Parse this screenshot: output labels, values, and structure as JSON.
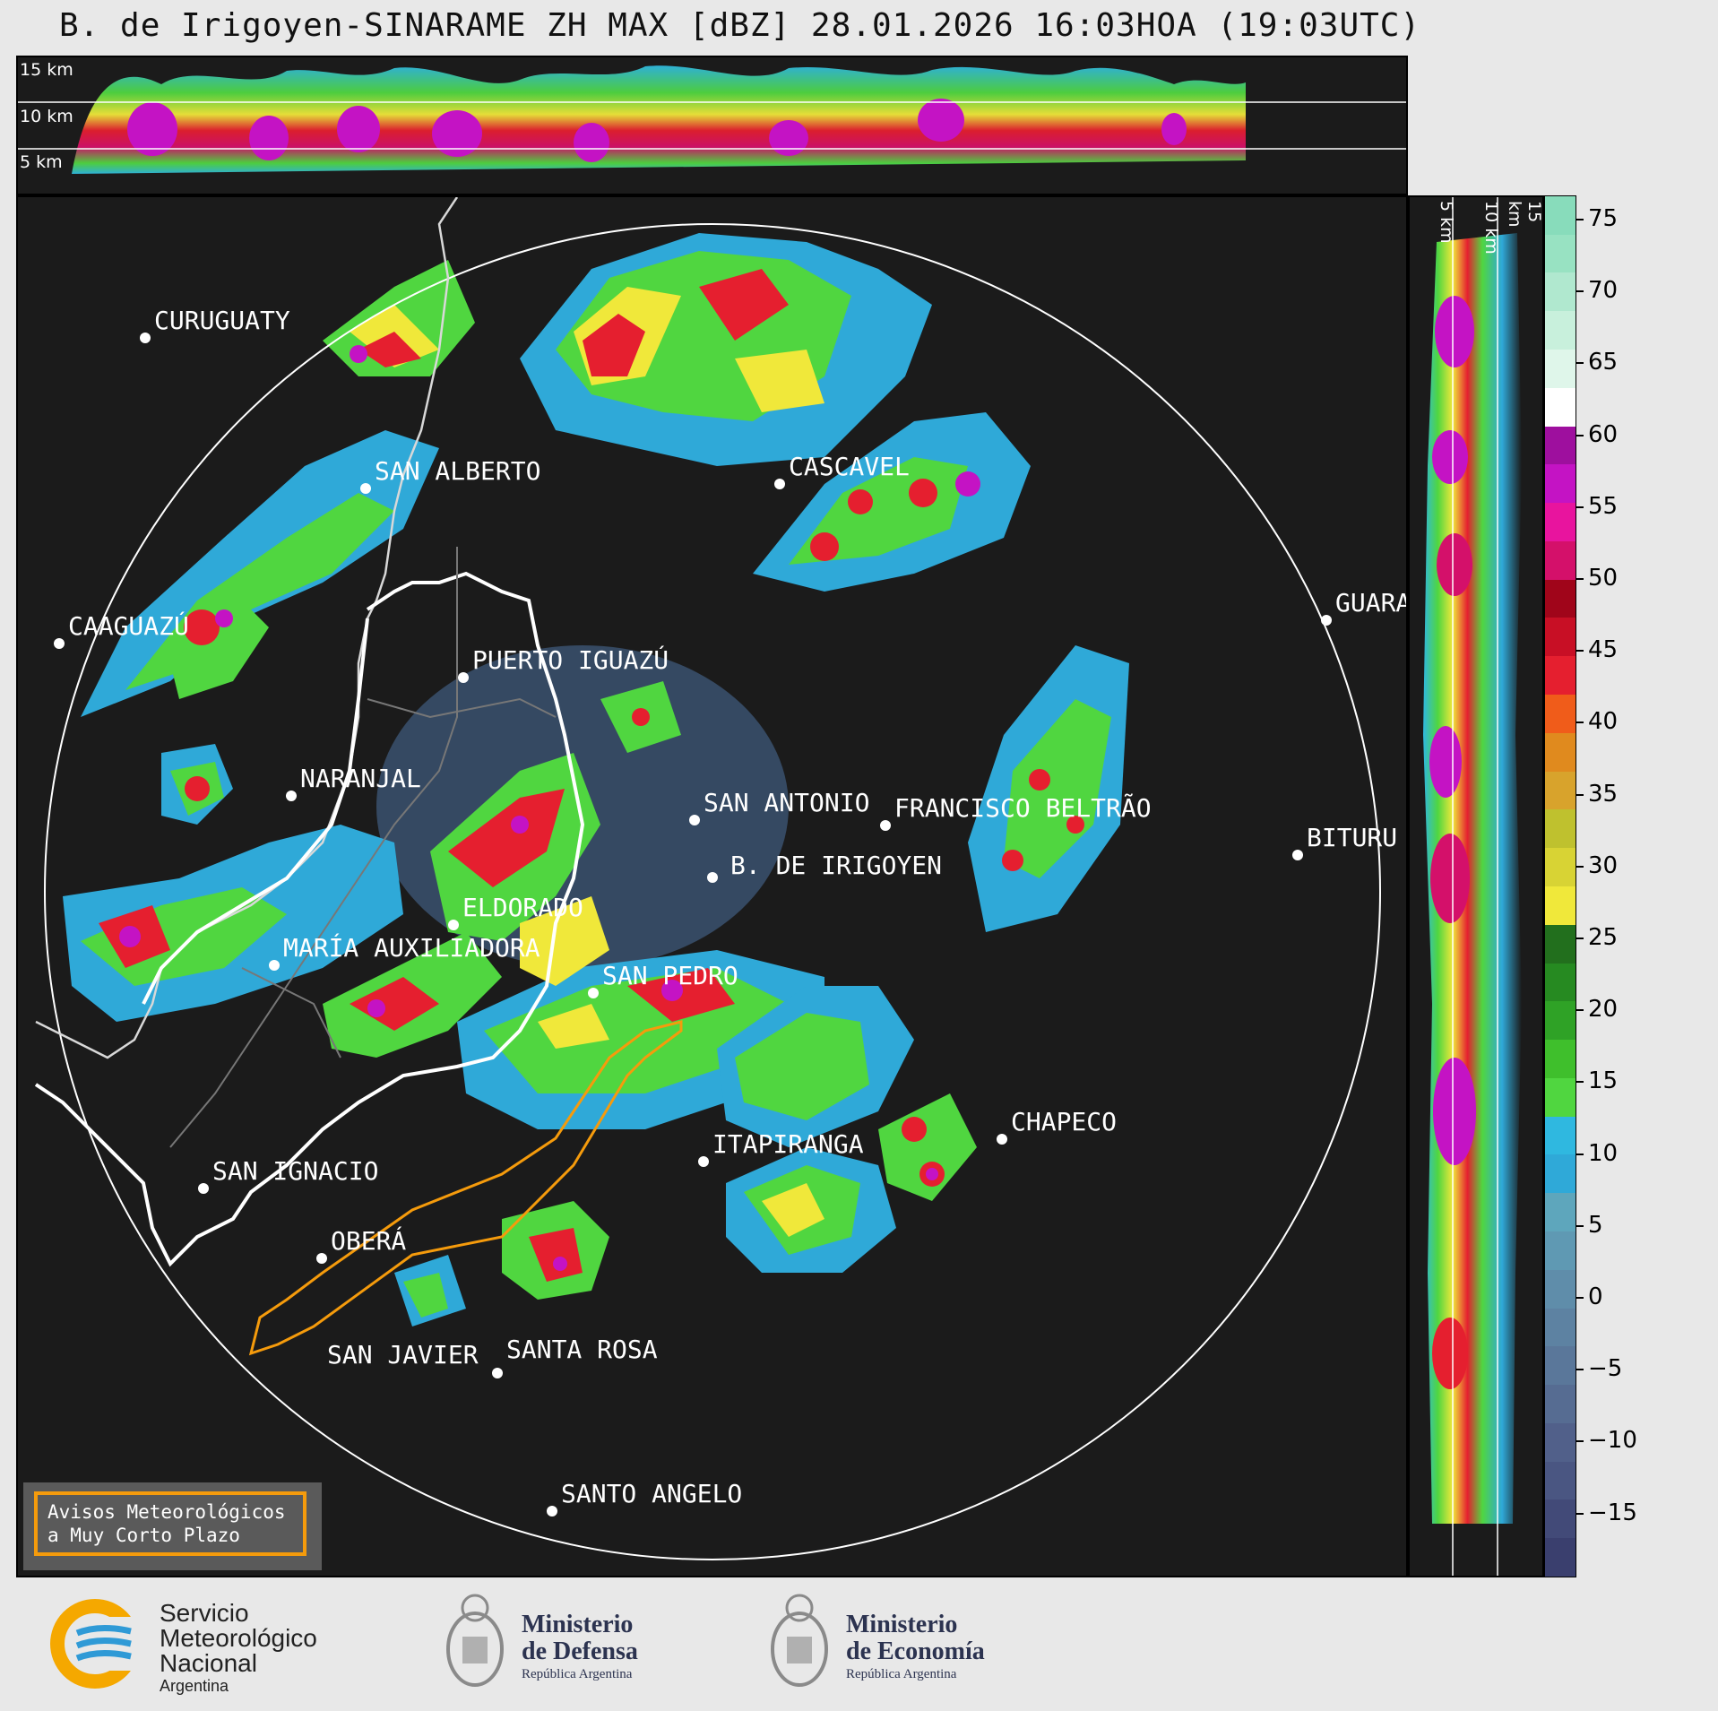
{
  "title": "B. de Irigoyen-SINARAME ZH MAX [dBZ] 28.01.2026 16:03HOA (19:03UTC)",
  "top_section": {
    "heights": [
      "15 km",
      "10 km",
      "5 km"
    ]
  },
  "side_section": {
    "heights": [
      "5 km",
      "10 km",
      "15 km"
    ]
  },
  "colorbar": {
    "ticks": [
      "75",
      "70",
      "65",
      "60",
      "55",
      "50",
      "45",
      "40",
      "35",
      "30",
      "25",
      "20",
      "15",
      "10",
      "5",
      "0",
      "−5",
      "−10",
      "−15"
    ],
    "colors": [
      "#3a3f6e",
      "#424a78",
      "#4a5682",
      "#51608a",
      "#566c92",
      "#5a779a",
      "#5d82a2",
      "#5f8daa",
      "#5f99b3",
      "#5ea6bc",
      "#2fa9d8",
      "#2fb8e0",
      "#50d640",
      "#3fbf2c",
      "#2fa226",
      "#268a21",
      "#226f1d",
      "#f0e83a",
      "#d8d334",
      "#bfc12e",
      "#d8a32c",
      "#e08a1e",
      "#f05c1a",
      "#e51f2f",
      "#c80f25",
      "#a0051a",
      "#d4106a",
      "#e8149e",
      "#c413c4",
      "#9e0f9e",
      "#ffffff",
      "#dff6ea",
      "#c8f0dc",
      "#b0e8cf",
      "#98e2c2",
      "#88dcbb"
    ]
  },
  "cities": [
    {
      "name": "CURUGUATY"
    },
    {
      "name": "SAN ALBERTO"
    },
    {
      "name": "CAAGUAZÚ"
    },
    {
      "name": "PUERTO IGUAZÚ"
    },
    {
      "name": "NARANJAL"
    },
    {
      "name": "CASCAVEL"
    },
    {
      "name": "GUARA"
    },
    {
      "name": "SAN ANTONIO"
    },
    {
      "name": "FRANCISCO BELTRÃO"
    },
    {
      "name": "B. DE IRIGOYEN"
    },
    {
      "name": "BITURU"
    },
    {
      "name": "ELDORADO"
    },
    {
      "name": "MARÍA AUXILIADORA"
    },
    {
      "name": "SAN PEDRO"
    },
    {
      "name": "CHAPECO"
    },
    {
      "name": "ITAPIRANGA"
    },
    {
      "name": "SAN IGNACIO"
    },
    {
      "name": "OBERÁ"
    },
    {
      "name": "SAN JAVIER"
    },
    {
      "name": "SANTA ROSA"
    },
    {
      "name": "SANTO ANGELO"
    }
  ],
  "avisos": {
    "line1": "Avisos Meteorológicos",
    "line2": "a Muy Corto Plazo"
  },
  "logos": {
    "smn": {
      "line1": "Servicio",
      "line2": "Meteorológico",
      "line3": "Nacional",
      "line4": "Argentina"
    },
    "defensa": {
      "line1": "Ministerio",
      "line2": "de Defensa",
      "line3": "República Argentina"
    },
    "economia": {
      "line1": "Ministerio",
      "line2": "de Economía",
      "line3": "República Argentina"
    }
  }
}
